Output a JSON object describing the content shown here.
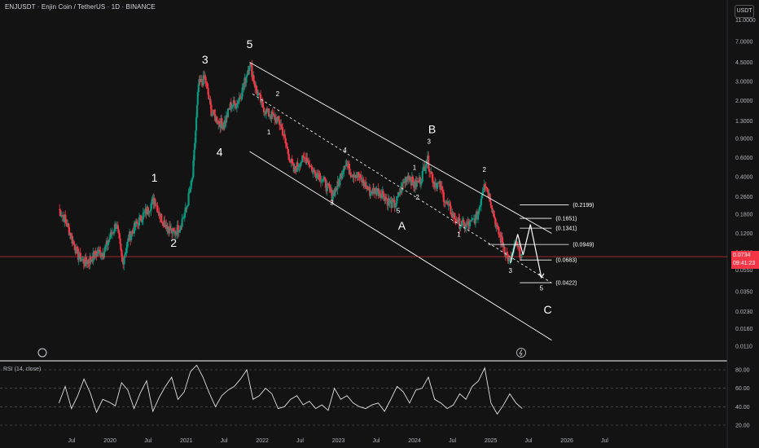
{
  "header": {
    "symbol_title": "ENJUSDT · Enjin Coin / TetherUS · 1D · BINANCE",
    "currency_button": "USDT"
  },
  "price_tag": {
    "price": "0.0734",
    "countdown": "09:41:23"
  },
  "rsi": {
    "label": "RSI (14, close)"
  },
  "colors": {
    "background": "#131313",
    "up": "#089981",
    "down": "#f23645",
    "lines": "#ffffff",
    "rsi_line": "#e0e0e0"
  },
  "chart_data": {
    "type": "candlestick",
    "title": "ENJUSDT · Enjin Coin / TetherUS · 1D · BINANCE",
    "yscale": "log",
    "y_ticks": [
      "11.0000",
      "7.0000",
      "4.5000",
      "3.0000",
      "2.0000",
      "1.3000",
      "0.9000",
      "0.6000",
      "0.4000",
      "0.2600",
      "0.1800",
      "0.1200",
      "0.0800",
      "0.0550",
      "0.0350",
      "0.0230",
      "0.0160",
      "0.0110"
    ],
    "x_ticks": [
      "Jul",
      "2020",
      "Jul",
      "2021",
      "Jul",
      "2022",
      "Jul",
      "2023",
      "Jul",
      "2024",
      "Jul",
      "2025",
      "Jul",
      "2026",
      "Jul"
    ],
    "last_price": 0.0734,
    "price_path": [
      {
        "d": "2019-05-01",
        "p": 0.2
      },
      {
        "d": "2019-06-01",
        "p": 0.16
      },
      {
        "d": "2019-07-01",
        "p": 0.11
      },
      {
        "d": "2019-08-01",
        "p": 0.075
      },
      {
        "d": "2019-09-01",
        "p": 0.065
      },
      {
        "d": "2019-10-01",
        "p": 0.07
      },
      {
        "d": "2019-11-01",
        "p": 0.08
      },
      {
        "d": "2019-12-01",
        "p": 0.08
      },
      {
        "d": "2020-01-01",
        "p": 0.11
      },
      {
        "d": "2020-02-01",
        "p": 0.15
      },
      {
        "d": "2020-03-01",
        "p": 0.065
      },
      {
        "d": "2020-04-01",
        "p": 0.11
      },
      {
        "d": "2020-05-01",
        "p": 0.14
      },
      {
        "d": "2020-06-01",
        "p": 0.17
      },
      {
        "d": "2020-07-01",
        "p": 0.2
      },
      {
        "d": "2020-08-01",
        "p": 0.25
      },
      {
        "d": "2020-09-01",
        "p": 0.17
      },
      {
        "d": "2020-10-01",
        "p": 0.14
      },
      {
        "d": "2020-11-01",
        "p": 0.12
      },
      {
        "d": "2020-12-01",
        "p": 0.14
      },
      {
        "d": "2021-01-01",
        "p": 0.2
      },
      {
        "d": "2021-02-01",
        "p": 0.4
      },
      {
        "d": "2021-03-01",
        "p": 2.8
      },
      {
        "d": "2021-04-01",
        "p": 3.2
      },
      {
        "d": "2021-05-01",
        "p": 1.6
      },
      {
        "d": "2021-06-01",
        "p": 1.3
      },
      {
        "d": "2021-07-01",
        "p": 1.2
      },
      {
        "d": "2021-08-01",
        "p": 1.8
      },
      {
        "d": "2021-09-01",
        "p": 1.9
      },
      {
        "d": "2021-10-01",
        "p": 2.6
      },
      {
        "d": "2021-11-01",
        "p": 4.5
      },
      {
        "d": "2021-12-01",
        "p": 2.6
      },
      {
        "d": "2022-01-01",
        "p": 1.8
      },
      {
        "d": "2022-02-01",
        "p": 1.5
      },
      {
        "d": "2022-03-01",
        "p": 1.4
      },
      {
        "d": "2022-04-01",
        "p": 1.2
      },
      {
        "d": "2022-05-01",
        "p": 0.7
      },
      {
        "d": "2022-06-01",
        "p": 0.45
      },
      {
        "d": "2022-07-01",
        "p": 0.55
      },
      {
        "d": "2022-08-01",
        "p": 0.6
      },
      {
        "d": "2022-09-01",
        "p": 0.45
      },
      {
        "d": "2022-10-01",
        "p": 0.42
      },
      {
        "d": "2022-11-01",
        "p": 0.34
      },
      {
        "d": "2022-12-01",
        "p": 0.27
      },
      {
        "d": "2023-01-01",
        "p": 0.34
      },
      {
        "d": "2023-02-01",
        "p": 0.55
      },
      {
        "d": "2023-03-01",
        "p": 0.44
      },
      {
        "d": "2023-04-01",
        "p": 0.42
      },
      {
        "d": "2023-05-01",
        "p": 0.35
      },
      {
        "d": "2023-06-01",
        "p": 0.29
      },
      {
        "d": "2023-07-01",
        "p": 0.3
      },
      {
        "d": "2023-08-01",
        "p": 0.28
      },
      {
        "d": "2023-09-01",
        "p": 0.23
      },
      {
        "d": "2023-10-01",
        "p": 0.22
      },
      {
        "d": "2023-11-01",
        "p": 0.32
      },
      {
        "d": "2023-12-01",
        "p": 0.42
      },
      {
        "d": "2024-01-01",
        "p": 0.33
      },
      {
        "d": "2024-02-01",
        "p": 0.38
      },
      {
        "d": "2024-03-01",
        "p": 0.6
      },
      {
        "d": "2024-04-01",
        "p": 0.36
      },
      {
        "d": "2024-05-01",
        "p": 0.33
      },
      {
        "d": "2024-06-01",
        "p": 0.23
      },
      {
        "d": "2024-07-01",
        "p": 0.18
      },
      {
        "d": "2024-08-01",
        "p": 0.15
      },
      {
        "d": "2024-09-01",
        "p": 0.14
      },
      {
        "d": "2024-10-01",
        "p": 0.15
      },
      {
        "d": "2024-11-01",
        "p": 0.18
      },
      {
        "d": "2024-12-01",
        "p": 0.37
      },
      {
        "d": "2025-01-01",
        "p": 0.24
      },
      {
        "d": "2025-02-01",
        "p": 0.13
      },
      {
        "d": "2025-03-01",
        "p": 0.095
      },
      {
        "d": "2025-04-01",
        "p": 0.065
      },
      {
        "d": "2025-05-01",
        "p": 0.095
      },
      {
        "d": "2025-06-01",
        "p": 0.073
      }
    ],
    "wave_labels": [
      {
        "text": "1",
        "d": "2020-08-01",
        "p": 0.36,
        "size": "big"
      },
      {
        "text": "2",
        "d": "2020-11-01",
        "p": 0.09,
        "size": "big"
      },
      {
        "text": "3",
        "d": "2021-04-01",
        "p": 4.4,
        "size": "big"
      },
      {
        "text": "4",
        "d": "2021-06-10",
        "p": 0.62,
        "size": "big"
      },
      {
        "text": "5",
        "d": "2021-11-01",
        "p": 6.1,
        "size": "big"
      },
      {
        "text": "1",
        "d": "2022-02-01",
        "p": 0.98,
        "size": "small"
      },
      {
        "text": "2",
        "d": "2022-03-15",
        "p": 2.2,
        "size": "small"
      },
      {
        "text": "3",
        "d": "2022-12-01",
        "p": 0.22,
        "size": "small"
      },
      {
        "text": "4",
        "d": "2023-02-01",
        "p": 0.67,
        "size": "small"
      },
      {
        "text": "5",
        "d": "2023-10-15",
        "p": 0.185,
        "size": "small"
      },
      {
        "text": "A",
        "d": "2023-11-01",
        "p": 0.13,
        "size": "big"
      },
      {
        "text": "1",
        "d": "2024-01-01",
        "p": 0.46,
        "size": "small"
      },
      {
        "text": "2",
        "d": "2024-01-15",
        "p": 0.245,
        "size": "small"
      },
      {
        "text": "3",
        "d": "2024-03-10",
        "p": 0.8,
        "size": "small"
      },
      {
        "text": "B",
        "d": "2024-03-25",
        "p": 1.0,
        "size": "big"
      },
      {
        "text": "1",
        "d": "2024-08-01",
        "p": 0.112,
        "size": "small"
      },
      {
        "text": "2",
        "d": "2024-12-01",
        "p": 0.44,
        "size": "small"
      },
      {
        "text": "3",
        "d": "2025-04-05",
        "p": 0.052,
        "size": "small"
      },
      {
        "text": "5",
        "d": "2025-09-01",
        "p": 0.036,
        "size": "small"
      },
      {
        "text": "C",
        "d": "2025-10-01",
        "p": 0.022,
        "size": "big"
      }
    ],
    "fib_levels": [
      {
        "label": "(0.2199)",
        "value": 0.2199
      },
      {
        "label": "(0.1651)",
        "value": 0.1651
      },
      {
        "label": "(0.1341)",
        "value": 0.1341
      },
      {
        "label": "(0.0949)",
        "value": 0.0949
      },
      {
        "label": "(0.0683)",
        "value": 0.0683
      },
      {
        "label": "(0.0422)",
        "value": 0.0422
      }
    ],
    "channel": {
      "upper": [
        {
          "d": "2021-11-01",
          "p": 4.5
        },
        {
          "d": "2025-10-20",
          "p": 0.12
        }
      ],
      "middle": [
        {
          "d": "2021-11-15",
          "p": 2.3
        },
        {
          "d": "2025-10-20",
          "p": 0.042
        }
      ],
      "lower": [
        {
          "d": "2021-11-01",
          "p": 0.68
        },
        {
          "d": "2025-10-20",
          "p": 0.0125
        }
      ]
    },
    "projection": [
      {
        "d": "2025-04-05",
        "p": 0.064
      },
      {
        "d": "2025-05-10",
        "p": 0.118
      },
      {
        "d": "2025-06-05",
        "p": 0.076
      },
      {
        "d": "2025-07-10",
        "p": 0.145
      },
      {
        "d": "2025-09-01",
        "p": 0.047
      }
    ],
    "rsi_ticks": [
      "80.00",
      "60.00",
      "40.00",
      "20.00"
    ],
    "rsi_values": [
      44,
      62,
      38,
      52,
      70,
      55,
      34,
      48,
      45,
      41,
      66,
      58,
      38,
      55,
      68,
      35,
      50,
      62,
      72,
      48,
      56,
      78,
      85,
      72,
      55,
      40,
      52,
      58,
      62,
      70,
      80,
      48,
      52,
      60,
      54,
      38,
      40,
      48,
      52,
      42,
      46,
      38,
      42,
      36,
      60,
      48,
      52,
      44,
      40,
      38,
      42,
      44,
      35,
      48,
      62,
      56,
      44,
      58,
      60,
      72,
      48,
      44,
      38,
      42,
      54,
      48,
      62,
      68,
      82,
      44,
      32,
      42,
      54,
      44,
      38
    ]
  }
}
